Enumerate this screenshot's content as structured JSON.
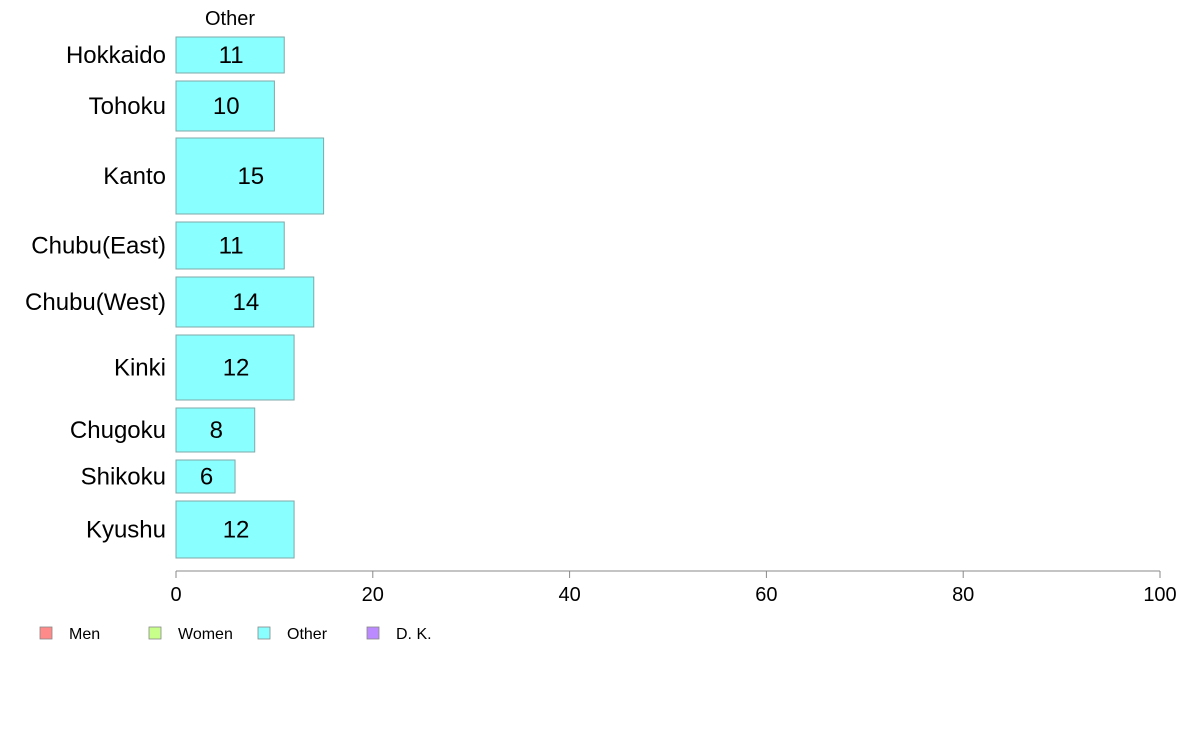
{
  "chart_data": {
    "type": "bar",
    "orientation": "horizontal",
    "categories": [
      "Hokkaido",
      "Tohoku",
      "Kanto",
      "Chubu(East)",
      "Chubu(West)",
      "Kinki",
      "Chugoku",
      "Shikoku",
      "Kyushu"
    ],
    "series": [
      {
        "name": "Other",
        "values": [
          11,
          10,
          15,
          11,
          14,
          12,
          8,
          6,
          12
        ],
        "color": "#8affff"
      }
    ],
    "column_title": "Other",
    "xlim": [
      0,
      100
    ],
    "xticks": [
      0,
      20,
      40,
      60,
      80,
      100
    ],
    "grid": false,
    "legend_position": "bottom-left",
    "legend": [
      {
        "label": "Men",
        "color": "#ff8a8a"
      },
      {
        "label": "Women",
        "color": "#c8ff8a"
      },
      {
        "label": "Other",
        "color": "#8affff"
      },
      {
        "label": "D. K.",
        "color": "#bb8aff"
      }
    ],
    "bar_edge_color": "#7fa8a8"
  }
}
